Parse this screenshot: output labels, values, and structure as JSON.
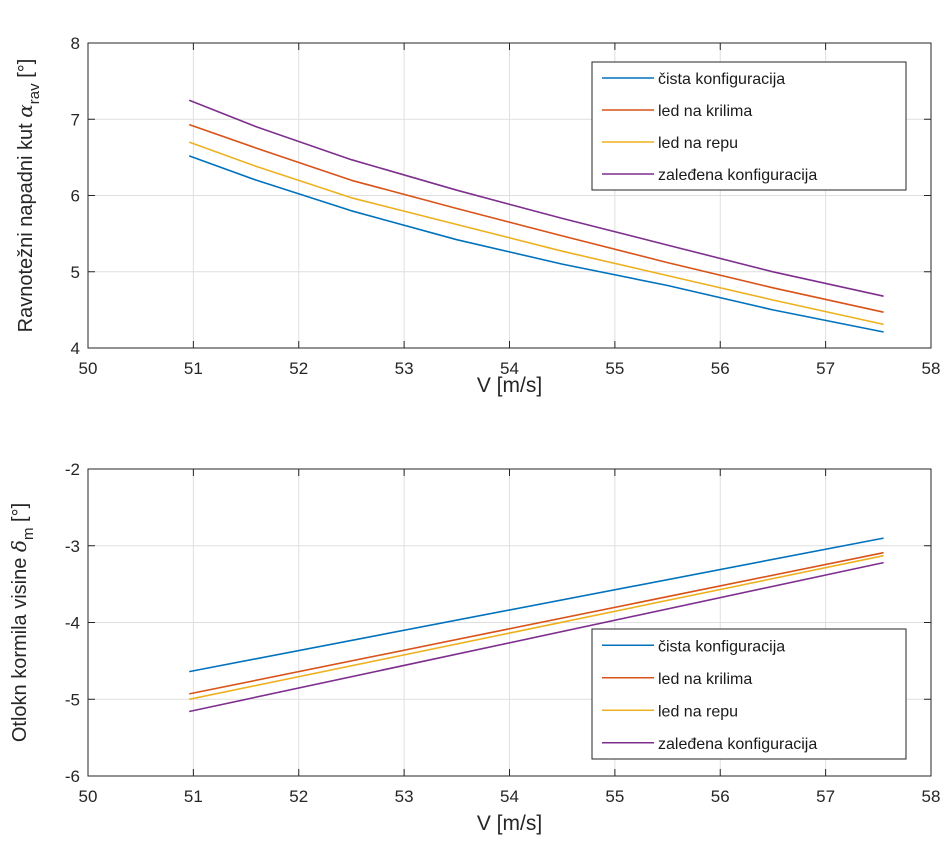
{
  "chart_data": [
    {
      "type": "line",
      "xlabel": "V [m/s]",
      "ylabel": {
        "prefix": "Ravnotežni napadni kut ",
        "symbol": "α",
        "subscript": "rav",
        "suffix": " [°]"
      },
      "xlim": [
        50,
        58
      ],
      "ylim": [
        4,
        8
      ],
      "xticks": [
        50,
        51,
        52,
        53,
        54,
        55,
        56,
        57,
        58
      ],
      "yticks": [
        4,
        5,
        6,
        7,
        8
      ],
      "grid": true,
      "legend_position": "top-right",
      "x": [
        50.96,
        51.6,
        52.5,
        53.5,
        54.5,
        55.5,
        56.5,
        57.55
      ],
      "series": [
        {
          "name": "čista konfiguracija",
          "color": "#0072BD",
          "values": [
            6.52,
            6.2,
            5.8,
            5.42,
            5.1,
            4.82,
            4.5,
            4.21
          ]
        },
        {
          "name": "led na krilima",
          "color": "#D95319",
          "values": [
            6.93,
            6.62,
            6.2,
            5.83,
            5.47,
            5.12,
            4.79,
            4.47
          ]
        },
        {
          "name": "led na repu",
          "color": "#EDB120",
          "values": [
            6.7,
            6.38,
            5.97,
            5.62,
            5.27,
            4.95,
            4.63,
            4.31
          ]
        },
        {
          "name": "zaleđena konfiguracija",
          "color": "#7E2F8E",
          "values": [
            7.25,
            6.9,
            6.47,
            6.07,
            5.7,
            5.35,
            5.0,
            4.68
          ]
        }
      ]
    },
    {
      "type": "line",
      "xlabel": "V [m/s]",
      "ylabel": {
        "prefix": "Otlokn kormila visine ",
        "symbol": "δ",
        "subscript": "m",
        "suffix": " [°]"
      },
      "xlim": [
        50,
        58
      ],
      "ylim": [
        -6,
        -2
      ],
      "xticks": [
        50,
        51,
        52,
        53,
        54,
        55,
        56,
        57,
        58
      ],
      "yticks": [
        -6,
        -5,
        -4,
        -3,
        -2
      ],
      "grid": true,
      "legend_position": "bottom-right",
      "x": [
        50.96,
        57.55
      ],
      "series": [
        {
          "name": "čista konfiguracija",
          "color": "#0072BD",
          "values": [
            -4.64,
            -2.9
          ]
        },
        {
          "name": "led na krilima",
          "color": "#D95319",
          "values": [
            -4.93,
            -3.09
          ]
        },
        {
          "name": "led na repu",
          "color": "#EDB120",
          "values": [
            -5.0,
            -3.13
          ]
        },
        {
          "name": "zaleđena konfiguracija",
          "color": "#7E2F8E",
          "values": [
            -5.16,
            -3.22
          ]
        }
      ]
    }
  ]
}
